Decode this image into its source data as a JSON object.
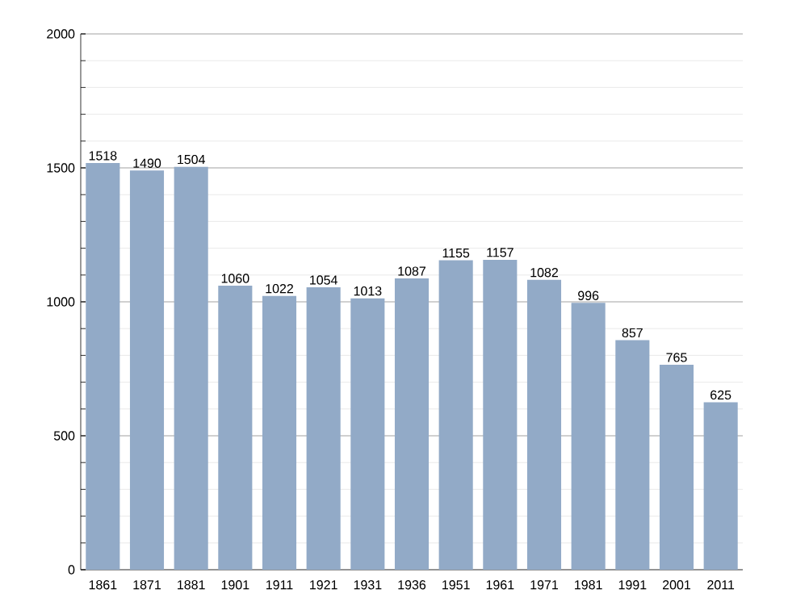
{
  "chart_data": {
    "type": "bar",
    "categories": [
      "1861",
      "1871",
      "1881",
      "1901",
      "1911",
      "1921",
      "1931",
      "1936",
      "1951",
      "1961",
      "1971",
      "1981",
      "1991",
      "2001",
      "2011"
    ],
    "values": [
      1518,
      1490,
      1504,
      1060,
      1022,
      1054,
      1013,
      1087,
      1155,
      1157,
      1082,
      996,
      857,
      765,
      625
    ],
    "color": "#92aac7",
    "ylim": [
      0,
      2000
    ],
    "yticks": [
      0,
      {
        "value": 100,
        "label": null
      },
      {
        "value": 200,
        "label": null
      },
      {
        "value": 300,
        "label": null
      },
      {
        "value": 400,
        "label": null
      },
      500,
      {
        "value": 600,
        "label": null
      },
      {
        "value": 700,
        "label": null
      },
      {
        "value": 800,
        "label": null
      },
      {
        "value": 900,
        "label": null
      },
      1000,
      {
        "value": 1100,
        "label": null
      },
      {
        "value": 1200,
        "label": null
      },
      {
        "value": 1300,
        "label": null
      },
      {
        "value": 1400,
        "label": null
      },
      1500,
      {
        "value": 1600,
        "label": null
      },
      {
        "value": 1700,
        "label": null
      },
      {
        "value": 1800,
        "label": null
      },
      {
        "value": 1900,
        "label": null
      },
      2000
    ],
    "grid": "y",
    "data_labels": true
  }
}
